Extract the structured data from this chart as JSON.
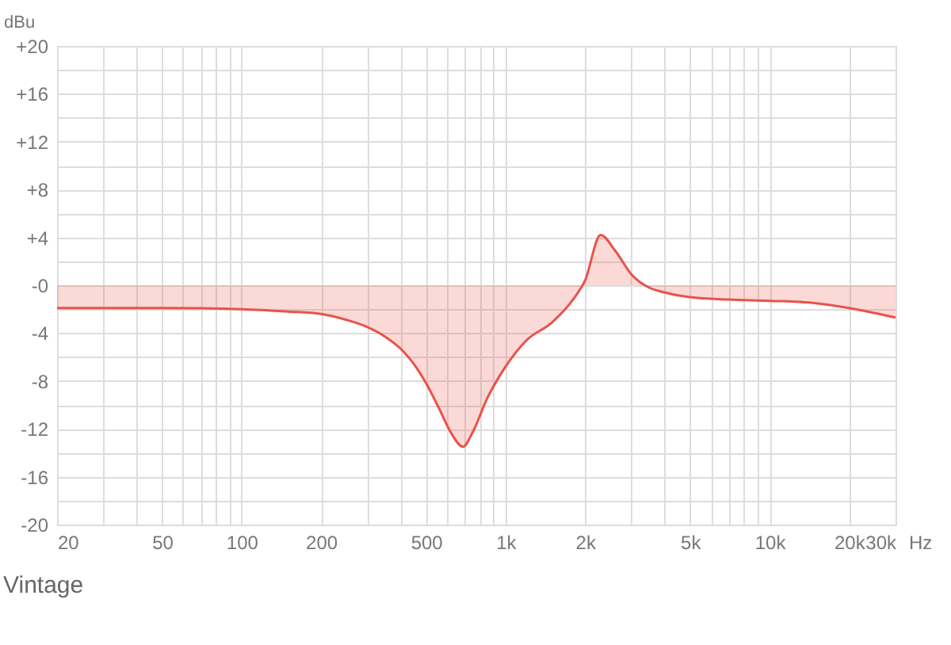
{
  "chart_data": {
    "type": "area",
    "title": "Vintage",
    "xlabel": "Hz",
    "ylabel": "dBu",
    "x": [
      20,
      50,
      100,
      150,
      200,
      250,
      300,
      350,
      400,
      450,
      500,
      560,
      620,
      690,
      750,
      850,
      1000,
      1200,
      1500,
      1800,
      2000,
      2290,
      2600,
      3000,
      3500,
      4000,
      5000,
      7000,
      10000,
      15000,
      20000,
      30000
    ],
    "series": [
      {
        "color": "#e8534a",
        "values": [
          -1.9,
          -1.9,
          -2.0,
          -2.2,
          -2.4,
          -2.9,
          -3.5,
          -4.3,
          -5.3,
          -6.6,
          -8.2,
          -10.3,
          -12.3,
          -13.5,
          -12.3,
          -9.5,
          -6.8,
          -4.6,
          -3.1,
          -1.2,
          0.4,
          4.2,
          2.9,
          0.9,
          -0.2,
          -0.6,
          -1.0,
          -1.2,
          -1.3,
          -1.5,
          -1.9,
          -2.7
        ]
      }
    ],
    "log": "x",
    "xlim": [
      20,
      30000
    ],
    "ylim": [
      -20,
      20
    ],
    "xticks": [
      20,
      {
        "value": 30,
        "label": null
      },
      {
        "value": 40,
        "label": null
      },
      50,
      {
        "value": 60,
        "label": null
      },
      {
        "value": 70,
        "label": null
      },
      {
        "value": 80,
        "label": null
      },
      {
        "value": 90,
        "label": null
      },
      100,
      200,
      {
        "value": 300,
        "label": null
      },
      {
        "value": 400,
        "label": null
      },
      500,
      {
        "value": 600,
        "label": null
      },
      {
        "value": 700,
        "label": null
      },
      {
        "value": 800,
        "label": null
      },
      {
        "value": 900,
        "label": null
      },
      {
        "value": 1000,
        "label": "1k"
      },
      {
        "value": 2000,
        "label": "2k"
      },
      {
        "value": 3000,
        "label": null
      },
      {
        "value": 4000,
        "label": null
      },
      {
        "value": 5000,
        "label": "5k"
      },
      {
        "value": 6000,
        "label": null
      },
      {
        "value": 7000,
        "label": null
      },
      {
        "value": 8000,
        "label": null
      },
      {
        "value": 9000,
        "label": null
      },
      {
        "value": 10000,
        "label": "10k"
      },
      {
        "value": 20000,
        "label": "20k"
      },
      {
        "value": 30000,
        "label": "30k"
      }
    ],
    "yticks": [
      {
        "value": 20,
        "label": "+20"
      },
      {
        "value": 18,
        "label": null
      },
      {
        "value": 16,
        "label": "+16"
      },
      {
        "value": 14,
        "label": null
      },
      {
        "value": 12,
        "label": "+12"
      },
      {
        "value": 10,
        "label": null
      },
      {
        "value": 8,
        "label": "+8"
      },
      {
        "value": 6,
        "label": null
      },
      {
        "value": 4,
        "label": "+4"
      },
      {
        "value": 2,
        "label": null
      },
      {
        "value": 0,
        "label": "-0"
      },
      {
        "value": -2,
        "label": null
      },
      -4,
      {
        "value": -6,
        "label": null
      },
      -8,
      {
        "value": -10,
        "label": null
      },
      -12,
      {
        "value": -14,
        "label": null
      },
      -16,
      {
        "value": -18,
        "label": null
      },
      -20
    ],
    "grid": true
  }
}
